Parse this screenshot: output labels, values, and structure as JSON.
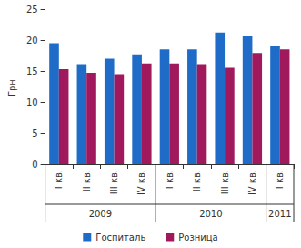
{
  "chart_data": {
    "type": "bar",
    "y_label": "Грн.",
    "categories": [
      "I кв.",
      "II кв.",
      "III кв.",
      "IV кв.",
      "I кв.",
      "II кв.",
      "III кв.",
      "IV кв.",
      "I кв."
    ],
    "x_groups": [
      {
        "label": "2009",
        "span": 4
      },
      {
        "label": "2010",
        "span": 4
      },
      {
        "label": "2011",
        "span": 1
      }
    ],
    "series": [
      {
        "name": "Госпиталь",
        "color": "#1f6cc8",
        "values": [
          19.5,
          16.1,
          17.0,
          17.7,
          18.5,
          18.5,
          21.2,
          20.7,
          19.1
        ]
      },
      {
        "name": "Розница",
        "color": "#a0195c",
        "values": [
          15.3,
          14.7,
          14.5,
          16.2,
          16.2,
          16.1,
          15.5,
          17.9,
          18.5
        ]
      }
    ],
    "ylim": [
      0,
      25
    ],
    "yticks": [
      0,
      5,
      10,
      15,
      20,
      25
    ],
    "grid": false,
    "legend": "bottom"
  }
}
